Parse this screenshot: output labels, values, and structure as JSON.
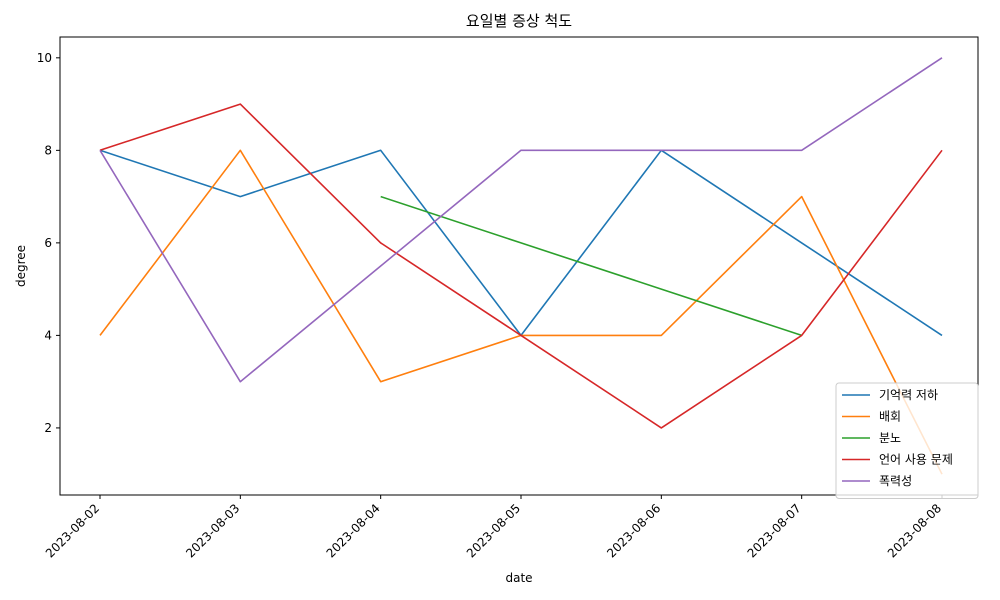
{
  "chart_data": {
    "type": "line",
    "title": "요일별 증상 척도",
    "xlabel": "date",
    "ylabel": "degree",
    "categories": [
      "2023-08-02",
      "2023-08-03",
      "2023-08-04",
      "2023-08-05",
      "2023-08-06",
      "2023-08-07",
      "2023-08-08"
    ],
    "ylim": [
      0.55,
      10.45
    ],
    "yticks": [
      2,
      4,
      6,
      8,
      10
    ],
    "grid": false,
    "legend_position": "lower-right",
    "series": [
      {
        "name": "기억력 저하",
        "color": "#1f77b4",
        "values": [
          8,
          7,
          8,
          4,
          8,
          6,
          4
        ]
      },
      {
        "name": "배회",
        "color": "#ff7f0e",
        "values": [
          4,
          8,
          3,
          4,
          4,
          7,
          1
        ]
      },
      {
        "name": "분노",
        "color": "#2ca02c",
        "values": [
          null,
          null,
          7,
          6,
          5,
          4,
          null
        ]
      },
      {
        "name": "언어 사용 문제",
        "color": "#d62728",
        "values": [
          8,
          9,
          6,
          4,
          2,
          4,
          8
        ]
      },
      {
        "name": "폭력성",
        "color": "#9467bd",
        "values": [
          8,
          3,
          5.5,
          8,
          8,
          8,
          10
        ]
      }
    ]
  }
}
